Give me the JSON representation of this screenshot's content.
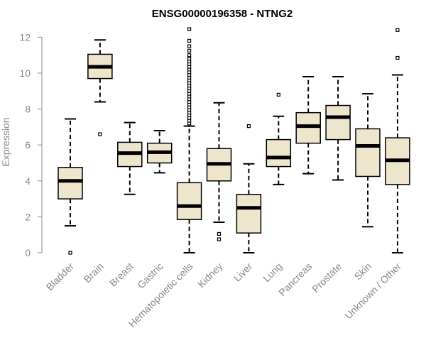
{
  "chart_data": {
    "type": "box",
    "title": "ENSG00000196358 - NTNG2",
    "xlabel": "",
    "ylabel": "Expression",
    "ylim": [
      0,
      12.5
    ],
    "yticks": [
      0,
      2,
      4,
      6,
      8,
      10,
      12
    ],
    "box_color": "#ede5cc",
    "line_color": "#000000",
    "categories": [
      "Bladder",
      "Brain",
      "Breast",
      "Gastric",
      "Hematopoietic cells",
      "Kidney",
      "Liver",
      "Lung",
      "Pancreas",
      "Prostate",
      "Skin",
      "Unknown / Other"
    ],
    "boxes": [
      {
        "name": "Bladder",
        "whisker_low": 1.5,
        "q1": 3.0,
        "median": 4.0,
        "q3": 4.75,
        "whisker_high": 7.45,
        "outliers": [
          0.0
        ]
      },
      {
        "name": "Brain",
        "whisker_low": 8.4,
        "q1": 9.7,
        "median": 10.35,
        "q3": 11.05,
        "whisker_high": 11.85,
        "outliers": [
          6.6
        ]
      },
      {
        "name": "Breast",
        "whisker_low": 3.25,
        "q1": 4.8,
        "median": 5.55,
        "q3": 6.15,
        "whisker_high": 7.25,
        "outliers": []
      },
      {
        "name": "Gastric",
        "whisker_low": 4.45,
        "q1": 5.0,
        "median": 5.6,
        "q3": 6.1,
        "whisker_high": 6.8,
        "outliers": []
      },
      {
        "name": "Hematopoietic cells",
        "whisker_low": 0.0,
        "q1": 1.85,
        "median": 2.6,
        "q3": 3.9,
        "whisker_high": 7.05,
        "outliers": [
          7.2,
          7.35,
          7.5,
          7.65,
          7.8,
          7.95,
          8.1,
          8.25,
          8.4,
          8.55,
          8.7,
          8.85,
          9.0,
          9.15,
          9.3,
          9.45,
          9.6,
          9.75,
          9.9,
          10.05,
          10.2,
          10.35,
          10.5,
          10.65,
          10.8,
          11.0,
          11.25,
          11.5,
          11.8,
          12.45
        ]
      },
      {
        "name": "Kidney",
        "whisker_low": 1.7,
        "q1": 4.0,
        "median": 4.95,
        "q3": 5.8,
        "whisker_high": 8.35,
        "outliers": [
          1.05,
          0.75
        ]
      },
      {
        "name": "Liver",
        "whisker_low": 0.0,
        "q1": 1.1,
        "median": 2.5,
        "q3": 3.25,
        "whisker_high": 4.95,
        "outliers": [
          7.05
        ]
      },
      {
        "name": "Lung",
        "whisker_low": 3.8,
        "q1": 4.8,
        "median": 5.3,
        "q3": 6.3,
        "whisker_high": 7.6,
        "outliers": [
          8.8
        ]
      },
      {
        "name": "Pancreas",
        "whisker_low": 4.4,
        "q1": 6.1,
        "median": 7.05,
        "q3": 7.8,
        "whisker_high": 9.8,
        "outliers": []
      },
      {
        "name": "Prostate",
        "whisker_low": 4.05,
        "q1": 6.3,
        "median": 7.55,
        "q3": 8.2,
        "whisker_high": 9.8,
        "outliers": []
      },
      {
        "name": "Skin",
        "whisker_low": 1.45,
        "q1": 4.25,
        "median": 5.95,
        "q3": 6.9,
        "whisker_high": 8.85,
        "outliers": []
      },
      {
        "name": "Unknown / Other",
        "whisker_low": 0.0,
        "q1": 3.8,
        "median": 5.15,
        "q3": 6.4,
        "whisker_high": 9.9,
        "outliers": [
          10.85,
          12.4
        ]
      }
    ]
  }
}
